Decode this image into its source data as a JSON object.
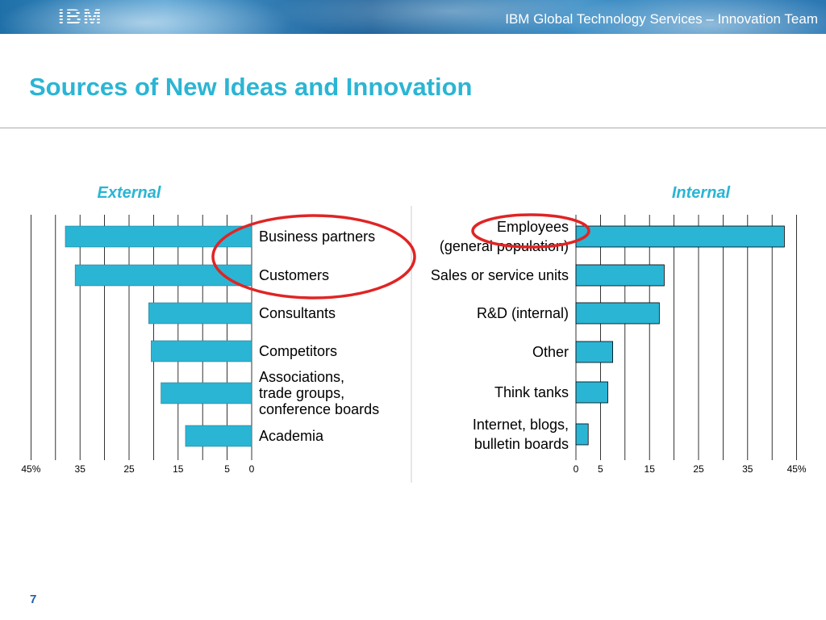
{
  "header": {
    "logo": "IBM",
    "banner_title": "IBM Global Technology Services – Innovation Team"
  },
  "title": "Sources of New Ideas and Innovation",
  "page_number": "7",
  "colors": {
    "bar": "#2bb5d4",
    "title": "#2bb5d4",
    "highlight": "#e02424"
  },
  "chart_data": [
    {
      "type": "bar",
      "orientation": "horizontal",
      "direction": "leftward",
      "title": "External",
      "categories": [
        [
          "Business partners"
        ],
        [
          "Customers"
        ],
        [
          "Consultants"
        ],
        [
          "Competitors"
        ],
        [
          "Associations,",
          "trade groups,",
          "conference boards"
        ],
        [
          "Academia"
        ]
      ],
      "values": [
        38,
        36,
        21,
        20.5,
        18.5,
        13.5
      ],
      "xlim": [
        0,
        45
      ],
      "ticks": [
        "45%",
        "35",
        "25",
        "15",
        "5",
        "0"
      ],
      "highlighted": [
        0,
        1
      ]
    },
    {
      "type": "bar",
      "orientation": "horizontal",
      "direction": "rightward",
      "title": "Internal",
      "categories": [
        [
          "Employees",
          "(general population)"
        ],
        [
          "Sales or service units"
        ],
        [
          "R&D (internal)"
        ],
        [
          "Other"
        ],
        [
          "Think tanks"
        ],
        [
          "Internet, blogs,",
          "bulletin boards"
        ]
      ],
      "values": [
        42.5,
        18,
        17,
        7.5,
        6.5,
        2.5
      ],
      "xlim": [
        0,
        45
      ],
      "ticks": [
        "0",
        "5",
        "15",
        "25",
        "35",
        "45%"
      ],
      "highlighted": [
        0
      ]
    }
  ]
}
